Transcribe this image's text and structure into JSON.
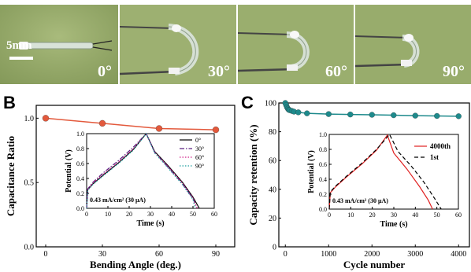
{
  "panels": {
    "a": {
      "letter": "A",
      "scale": "5mm",
      "angles": [
        "0°",
        "30°",
        "60°",
        "90°"
      ]
    },
    "b": {
      "letter": "B"
    },
    "c": {
      "letter": "C"
    }
  },
  "colors": {
    "photo_bg": "#98ad6a",
    "panel_b_series": "#e3593c",
    "panel_c_series": "#1e8a8c"
  },
  "chart_data": [
    {
      "id": "B-main",
      "type": "line",
      "xlabel": "Bending Angle (deg.)",
      "ylabel": "Capacitance Ratio",
      "xlim": [
        -5,
        100
      ],
      "ylim": [
        0,
        1.1
      ],
      "xticks": [
        "0",
        "30",
        "60",
        "90"
      ],
      "yticks": [
        "0.0",
        "0.5",
        "1.0"
      ],
      "x": [
        0,
        30,
        60,
        90
      ],
      "series": [
        {
          "values": [
            1.0,
            0.96,
            0.92,
            0.91
          ],
          "color": "#e3593c"
        }
      ],
      "markers": "circle"
    },
    {
      "id": "B-inset",
      "type": "line",
      "xlabel": "Time (s)",
      "ylabel": "Potential (V)",
      "xlim": [
        0,
        60
      ],
      "ylim": [
        0,
        1.0
      ],
      "xticks": [
        "0",
        "10",
        "20",
        "30",
        "40",
        "50",
        "60"
      ],
      "yticks": [
        "0.0",
        "0.2",
        "0.4",
        "0.6",
        "0.8",
        "1.0"
      ],
      "annotation": "0.43 mA/cm² (30 μA)",
      "legend_position": "top-right",
      "series": [
        {
          "name": "0°",
          "color": "#000000",
          "dash": "solid",
          "x": [
            0,
            0.5,
            3,
            8,
            15,
            22,
            28,
            32,
            38,
            45,
            50,
            53
          ],
          "y": [
            0,
            0.25,
            0.33,
            0.45,
            0.61,
            0.79,
            1.0,
            0.76,
            0.58,
            0.35,
            0.15,
            0.0
          ]
        },
        {
          "name": "30°",
          "color": "#5a2080",
          "dash": "dashdot",
          "x": [
            0,
            0.5,
            3,
            8,
            15,
            22,
            28,
            32,
            38,
            45,
            50,
            52
          ],
          "y": [
            0,
            0.26,
            0.35,
            0.48,
            0.64,
            0.82,
            1.0,
            0.75,
            0.56,
            0.33,
            0.13,
            0.0
          ]
        },
        {
          "name": "60°",
          "color": "#d0208a",
          "dash": "dotted",
          "x": [
            0,
            0.5,
            3,
            8,
            15,
            22,
            28,
            32,
            38,
            45,
            50,
            52
          ],
          "y": [
            0,
            0.25,
            0.34,
            0.46,
            0.62,
            0.8,
            1.0,
            0.75,
            0.57,
            0.34,
            0.14,
            0.0
          ]
        },
        {
          "name": "90°",
          "color": "#20a0a0",
          "dash": "dotted",
          "x": [
            0,
            0.5,
            3,
            8,
            15,
            22,
            28,
            32,
            38,
            45,
            50,
            51
          ],
          "y": [
            0,
            0.24,
            0.32,
            0.44,
            0.6,
            0.78,
            1.0,
            0.74,
            0.55,
            0.32,
            0.12,
            0.0
          ]
        }
      ]
    },
    {
      "id": "C-main",
      "type": "line",
      "xlabel": "Cycle number",
      "ylabel": "Capacity retention (%)",
      "xlim": [
        -150,
        4250
      ],
      "ylim": [
        0,
        100
      ],
      "xticks": [
        "0",
        "1000",
        "2000",
        "3000",
        "4000"
      ],
      "yticks": [
        "0",
        "20",
        "40",
        "60",
        "80",
        "100"
      ],
      "x": [
        0,
        20,
        40,
        60,
        80,
        100,
        150,
        200,
        300,
        500,
        1000,
        1500,
        2000,
        2500,
        3000,
        3500,
        4000
      ],
      "series": [
        {
          "values": [
            100,
            98.5,
            97,
            96,
            95.3,
            95,
            94.5,
            94,
            93.5,
            92.8,
            92.3,
            92,
            91.8,
            91.5,
            91.2,
            91,
            90.8
          ],
          "color": "#1e8a8c"
        }
      ],
      "markers": "circle"
    },
    {
      "id": "C-inset",
      "type": "line",
      "xlabel": "Time (s)",
      "ylabel": "Potential (V)",
      "xlim": [
        0,
        60
      ],
      "ylim": [
        0,
        1.0
      ],
      "xticks": [
        "0",
        "10",
        "20",
        "30",
        "40",
        "50",
        "60"
      ],
      "yticks": [
        "0.0",
        "0.2",
        "0.4",
        "0.6",
        "0.8",
        "1.0"
      ],
      "annotation": "0.43 mA/cm² (30 μA)",
      "legend_position": "right",
      "series": [
        {
          "name": "4000th",
          "color": "#e02020",
          "dash": "solid",
          "x": [
            0,
            0.5,
            3,
            8,
            15,
            22,
            27,
            30,
            36,
            42,
            46,
            48
          ],
          "y": [
            0,
            0.22,
            0.3,
            0.43,
            0.6,
            0.79,
            0.99,
            0.75,
            0.54,
            0.3,
            0.12,
            0.0
          ]
        },
        {
          "name": "1st",
          "color": "#000000",
          "dash": "dashed",
          "x": [
            0,
            0.5,
            3,
            8,
            15,
            22,
            28,
            32,
            38,
            44,
            49,
            52
          ],
          "y": [
            0,
            0.23,
            0.31,
            0.44,
            0.61,
            0.8,
            1.0,
            0.77,
            0.58,
            0.36,
            0.14,
            0.0
          ]
        }
      ]
    }
  ]
}
